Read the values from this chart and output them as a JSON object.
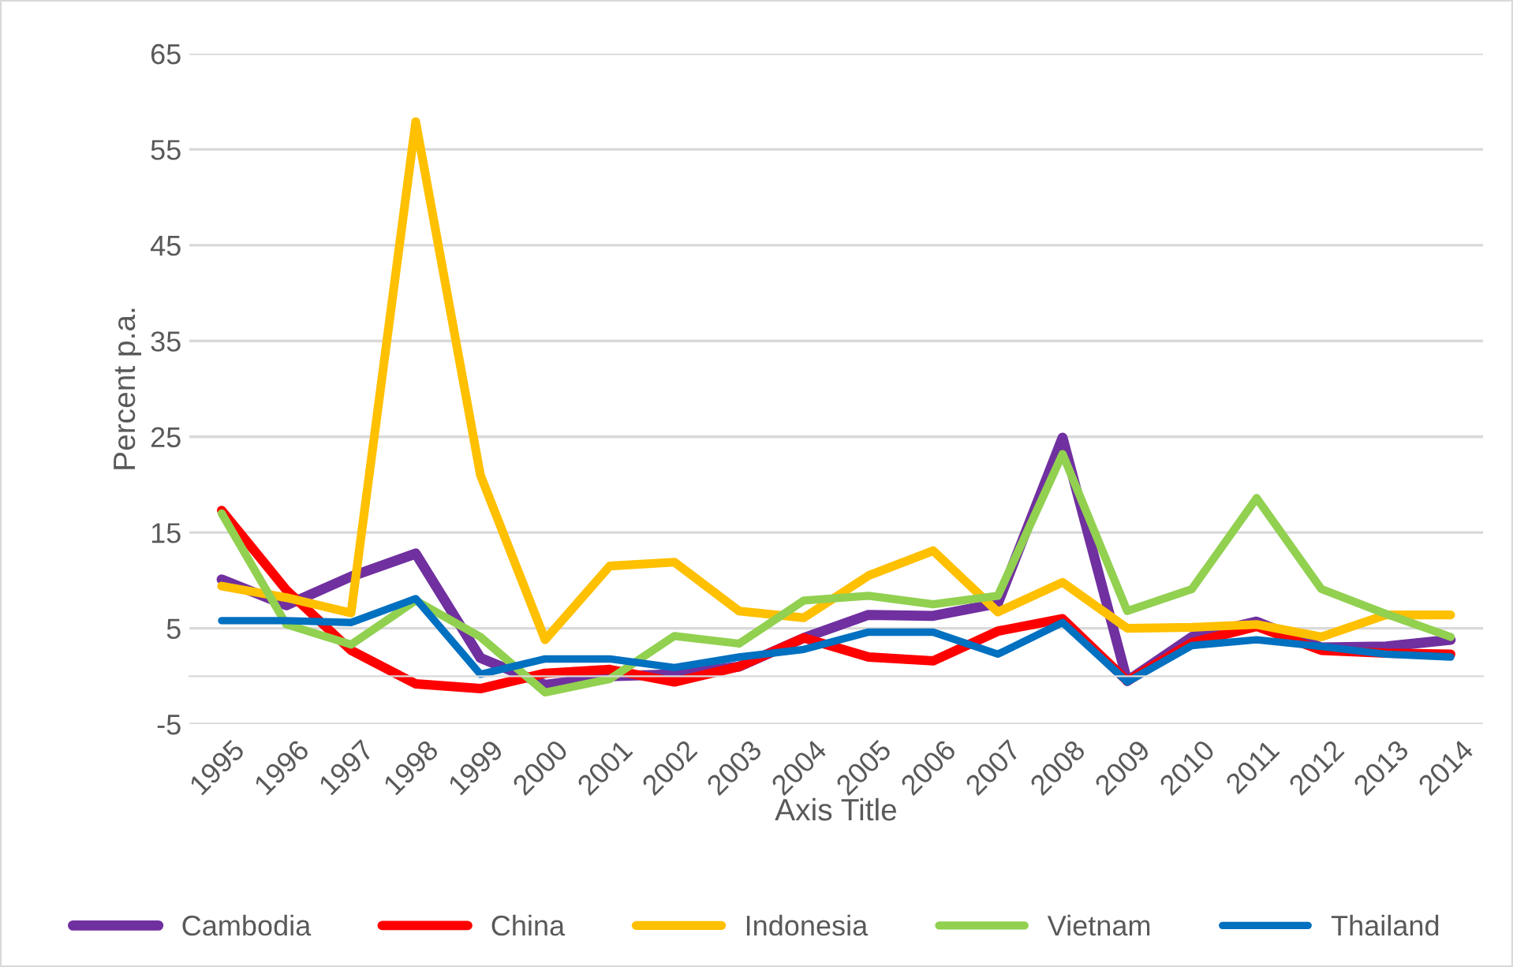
{
  "chart_data": {
    "type": "line",
    "xlabel": "Axis Title",
    "ylabel": "Percent p.a.",
    "categories": [
      "1995",
      "1996",
      "1997",
      "1998",
      "1999",
      "2000",
      "2001",
      "2002",
      "2003",
      "2004",
      "2005",
      "2006",
      "2007",
      "2008",
      "2009",
      "2010",
      "2011",
      "2012",
      "2013",
      "2014"
    ],
    "series": [
      {
        "name": "Cambodia",
        "color": "#7030a0",
        "values": [
          10.1,
          7.4,
          10.4,
          12.8,
          1.9,
          -0.9,
          0,
          0.2,
          1,
          4,
          6.4,
          6.3,
          7.6,
          24.9,
          -0.5,
          4.1,
          5.7,
          3,
          3.1,
          3.8
        ]
      },
      {
        "name": "China",
        "color": "#ff0000",
        "values": [
          17.3,
          9,
          2.7,
          -0.8,
          -1.3,
          0.3,
          0.7,
          -0.6,
          1,
          4,
          2,
          1.6,
          4.7,
          6,
          -0.5,
          3.5,
          5.2,
          2.7,
          2.4,
          2.3
        ]
      },
      {
        "name": "Indonesia",
        "color": "#ffc000",
        "values": [
          9.4,
          8.2,
          6.6,
          57.9,
          21,
          3.8,
          11.5,
          11.9,
          6.8,
          6.1,
          10.5,
          13.1,
          6.7,
          9.8,
          5,
          5.1,
          5.4,
          4.1,
          6.4,
          6.4
        ]
      },
      {
        "name": "Vietnam",
        "color": "#92d050",
        "values": [
          17,
          5.4,
          3.3,
          7.9,
          4.1,
          -1.7,
          -0.3,
          4.2,
          3.4,
          7.9,
          8.4,
          7.5,
          8.4,
          23.2,
          6.8,
          9.1,
          18.6,
          9.1,
          6.5,
          4.1
        ]
      },
      {
        "name": "Thailand",
        "color": "#0070c0",
        "values": [
          5.8,
          5.8,
          5.6,
          8.1,
          0.2,
          1.8,
          1.8,
          0.9,
          2,
          2.8,
          4.6,
          4.6,
          2.3,
          5.6,
          -0.6,
          3.2,
          3.8,
          3.1,
          2.3,
          2
        ]
      }
    ],
    "ylim": [
      -5,
      65
    ],
    "yticks": [
      -5,
      5,
      15,
      25,
      35,
      45,
      55,
      65
    ],
    "grid": "y",
    "legend": "bottom",
    "marker": "none",
    "line_style": "solid"
  }
}
